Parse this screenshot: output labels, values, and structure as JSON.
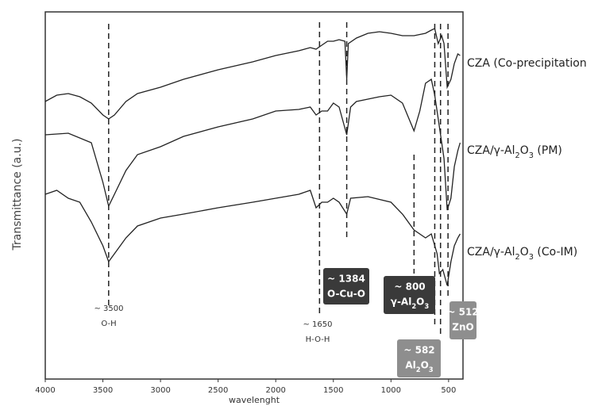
{
  "chart_data": {
    "type": "line",
    "xlabel": "wavelenght",
    "ylabel": "Transmittance (a.u.)",
    "xlim": [
      4000,
      375
    ],
    "ylim": [
      0,
      463
    ],
    "xticks": [
      4000,
      3500,
      3000,
      2500,
      2000,
      1500,
      1000,
      500
    ],
    "guide_lines": [
      3450,
      1620,
      1384,
      800,
      620,
      570,
      505
    ],
    "series": [
      {
        "name": "CZA (Co-precipitation",
        "color": "#222222",
        "x": [
          4000,
          3900,
          3800,
          3700,
          3600,
          3500,
          3450,
          3400,
          3300,
          3200,
          3000,
          2800,
          2500,
          2200,
          2000,
          1800,
          1700,
          1650,
          1600,
          1550,
          1500,
          1450,
          1400,
          1384,
          1370,
          1300,
          1200,
          1100,
          1000,
          900,
          800,
          700,
          650,
          620,
          590,
          560,
          540,
          512,
          480,
          450,
          420,
          400
        ],
        "values": [
          350,
          358,
          360,
          356,
          348,
          333,
          328,
          333,
          350,
          360,
          368,
          378,
          390,
          400,
          408,
          414,
          418,
          416,
          421,
          426,
          426,
          428,
          426,
          378,
          423,
          430,
          436,
          438,
          436,
          433,
          433,
          436,
          440,
          442,
          423,
          433,
          423,
          368,
          378,
          398,
          410,
          408
        ]
      },
      {
        "name": "CZA/γ-Al2O3 (PM)",
        "color": "#222222",
        "x": [
          4000,
          3800,
          3600,
          3500,
          3450,
          3400,
          3300,
          3200,
          3000,
          2800,
          2500,
          2200,
          2000,
          1800,
          1700,
          1650,
          1600,
          1550,
          1500,
          1450,
          1384,
          1350,
          1300,
          1200,
          1100,
          1000,
          900,
          800,
          750,
          700,
          650,
          620,
          580,
          540,
          512,
          480,
          450,
          420,
          400
        ],
        "values": [
          308,
          310,
          298,
          248,
          218,
          233,
          263,
          283,
          293,
          306,
          318,
          328,
          338,
          340,
          343,
          333,
          338,
          338,
          348,
          343,
          308,
          343,
          350,
          353,
          356,
          358,
          348,
          313,
          338,
          373,
          378,
          358,
          318,
          278,
          213,
          228,
          268,
          288,
          298
        ]
      },
      {
        "name": "CZA/γ-Al2O3 (Co-IM)",
        "color": "#222222",
        "x": [
          4000,
          3900,
          3800,
          3700,
          3600,
          3500,
          3450,
          3400,
          3300,
          3200,
          3000,
          2800,
          2500,
          2200,
          2000,
          1800,
          1700,
          1650,
          1600,
          1550,
          1500,
          1450,
          1384,
          1350,
          1200,
          1000,
          900,
          800,
          700,
          650,
          600,
          580,
          550,
          512,
          480,
          450,
          420,
          400
        ],
        "values": [
          233,
          238,
          228,
          223,
          198,
          168,
          148,
          158,
          178,
          193,
          203,
          208,
          216,
          223,
          228,
          233,
          238,
          216,
          223,
          223,
          228,
          223,
          208,
          228,
          230,
          223,
          208,
          188,
          178,
          183,
          158,
          133,
          138,
          118,
          148,
          168,
          178,
          183
        ]
      }
    ],
    "annotations": [
      {
        "lines": [
          "~ 3500",
          "O-H"
        ]
      },
      {
        "lines": [
          "~ 1650",
          "H-O-H"
        ]
      },
      {
        "lines": [
          "~ 1384",
          "O-Cu-O"
        ]
      },
      {
        "lines": [
          "~ 800",
          "γ-Al2O3"
        ]
      },
      {
        "lines": [
          "~ 582",
          "Al2O3"
        ]
      },
      {
        "lines": [
          "~ 512",
          "ZnO"
        ]
      }
    ]
  }
}
